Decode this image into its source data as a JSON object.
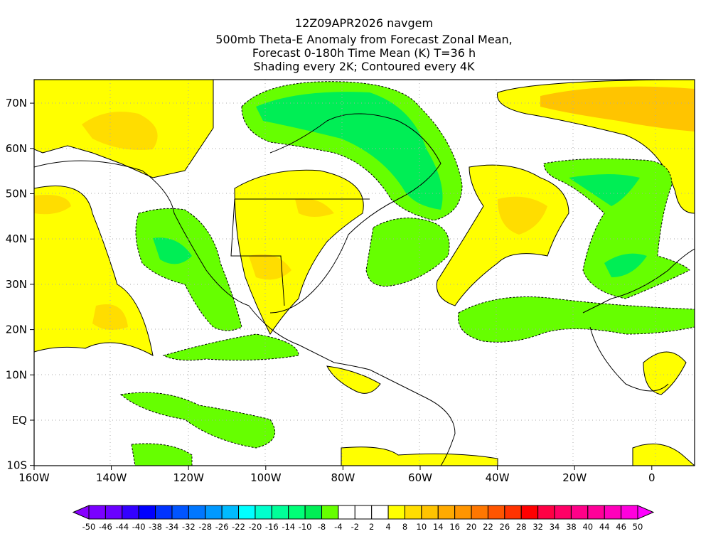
{
  "title": {
    "line1": "12Z09APR2026 navgem",
    "line2": "500mb Theta-E Anomaly from Forecast Zonal Mean,",
    "line3": "Forecast 0-180h Time Mean (K) T=36 h",
    "line4": "Shading every 2K; Contoured every 4K"
  },
  "map": {
    "lat_labels": [
      "70N",
      "60N",
      "50N",
      "40N",
      "30N",
      "20N",
      "10N",
      "EQ",
      "10S"
    ],
    "lat_values": [
      70,
      60,
      50,
      40,
      30,
      20,
      10,
      0,
      -10
    ],
    "lon_labels": [
      "160W",
      "140W",
      "120W",
      "100W",
      "80W",
      "60W",
      "40W",
      "20W",
      "0"
    ],
    "lon_values": [
      -160,
      -140,
      -120,
      -100,
      -80,
      -60,
      -40,
      -20,
      0
    ]
  },
  "colorbar": {
    "labels": [
      "-50",
      "-46",
      "-44",
      "-40",
      "-38",
      "-34",
      "-32",
      "-28",
      "-26",
      "-22",
      "-20",
      "-16",
      "-14",
      "-10",
      "-8",
      "-4",
      "-2",
      "2",
      "4",
      "8",
      "10",
      "14",
      "16",
      "20",
      "22",
      "26",
      "28",
      "32",
      "34",
      "38",
      "40",
      "44",
      "46",
      "50"
    ],
    "colors": [
      "#7a00ff",
      "#6a00ff",
      "#3300ff",
      "#0000ff",
      "#0033ff",
      "#0055ff",
      "#0077ff",
      "#0099ff",
      "#00bbff",
      "#00ffff",
      "#00ffcc",
      "#00ff99",
      "#00ff77",
      "#00ee55",
      "#66ff00",
      "#ffffff",
      "#ffffff",
      "#ffffff",
      "#ffff00",
      "#ffdd00",
      "#ffc400",
      "#ffaa00",
      "#ff9500",
      "#ff7700",
      "#ff5500",
      "#ff3300",
      "#ff0000",
      "#ff0044",
      "#ff0066",
      "#ff0088",
      "#ff0099",
      "#ff00bb",
      "#ff00dd"
    ],
    "low_arrow_color": "#8800ff",
    "high_arrow_color": "#ff00ff"
  }
}
